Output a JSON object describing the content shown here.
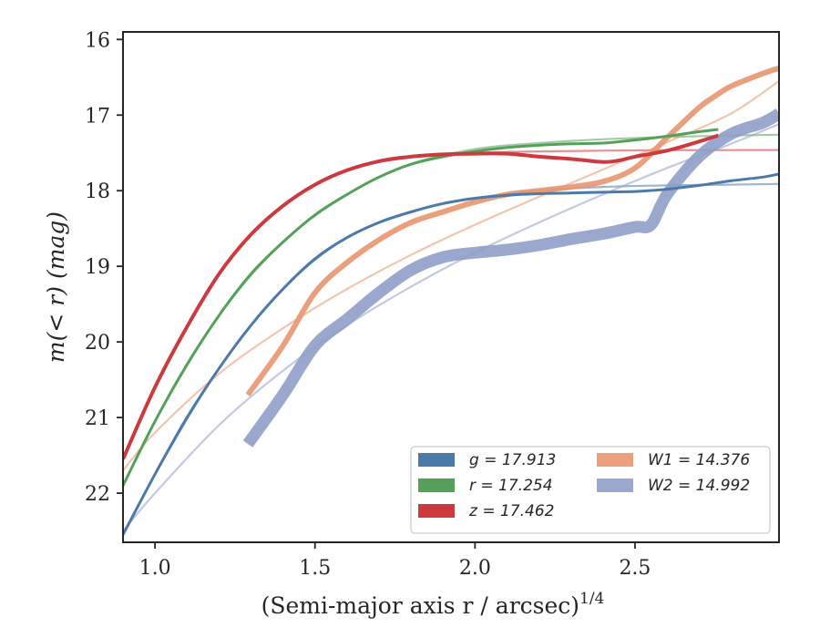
{
  "chart_data": {
    "type": "line",
    "xlabel": "(Semi-major axis r / arcsec)",
    "xlabel_exponent": "1/4",
    "ylabel": "m(< r) (mag)",
    "xlim": [
      0.9,
      2.95
    ],
    "ylim": [
      22.65,
      15.9
    ],
    "y_inverted": true,
    "x_ticks": [
      1.0,
      1.5,
      2.0,
      2.5
    ],
    "x_tick_labels": [
      "1.0",
      "1.5",
      "2.0",
      "2.5"
    ],
    "y_ticks": [
      16,
      17,
      18,
      19,
      20,
      21,
      22
    ],
    "y_tick_labels": [
      "16",
      "17",
      "18",
      "19",
      "20",
      "21",
      "22"
    ],
    "grid": false,
    "legend_position": "lower-right",
    "legend_columns": 2,
    "series": [
      {
        "name": "g = 17.913",
        "band": "g",
        "mag": "17.913",
        "color": "#4c7aa8",
        "x": [
          0.9,
          1.0,
          1.1,
          1.2,
          1.3,
          1.4,
          1.5,
          1.6,
          1.7,
          1.8,
          1.9,
          2.0,
          2.1,
          2.2,
          2.3,
          2.4,
          2.5,
          2.6,
          2.7,
          2.8,
          2.9,
          2.95
        ],
        "y": [
          22.55,
          21.75,
          21.0,
          20.35,
          19.78,
          19.3,
          18.9,
          18.62,
          18.42,
          18.28,
          18.17,
          18.1,
          18.06,
          18.04,
          18.03,
          18.02,
          18.01,
          17.98,
          17.93,
          17.87,
          17.82,
          17.78
        ],
        "model_x": [
          0.9,
          1.0,
          1.2,
          1.4,
          1.6,
          1.8,
          2.0,
          2.2,
          2.4,
          2.6,
          2.8,
          2.95
        ],
        "model_y": [
          22.55,
          21.75,
          20.35,
          19.3,
          18.62,
          18.28,
          18.1,
          18.0,
          17.95,
          17.93,
          17.92,
          17.91
        ]
      },
      {
        "name": "r = 17.254",
        "band": "r",
        "mag": "17.254",
        "color": "#55a05a",
        "x": [
          0.9,
          1.0,
          1.1,
          1.2,
          1.3,
          1.4,
          1.5,
          1.6,
          1.7,
          1.8,
          1.9,
          2.0,
          2.1,
          2.2,
          2.3,
          2.4,
          2.5,
          2.6,
          2.7,
          2.76
        ],
        "y": [
          21.9,
          21.05,
          20.3,
          19.65,
          19.1,
          18.68,
          18.32,
          18.05,
          17.82,
          17.65,
          17.55,
          17.48,
          17.43,
          17.4,
          17.38,
          17.37,
          17.33,
          17.28,
          17.22,
          17.19
        ],
        "model_x": [
          0.9,
          1.0,
          1.2,
          1.4,
          1.6,
          1.8,
          2.0,
          2.2,
          2.4,
          2.6,
          2.8,
          2.95
        ],
        "model_y": [
          21.9,
          21.05,
          19.65,
          18.68,
          18.05,
          17.65,
          17.45,
          17.37,
          17.32,
          17.29,
          17.27,
          17.26
        ]
      },
      {
        "name": "z = 17.462",
        "band": "z",
        "mag": "17.462",
        "color": "#cc3a3f",
        "x": [
          0.9,
          1.0,
          1.1,
          1.2,
          1.3,
          1.4,
          1.5,
          1.6,
          1.7,
          1.8,
          1.9,
          2.0,
          2.1,
          2.2,
          2.3,
          2.4,
          2.45,
          2.5,
          2.6,
          2.7,
          2.76
        ],
        "y": [
          21.55,
          20.6,
          19.8,
          19.1,
          18.58,
          18.2,
          17.92,
          17.73,
          17.61,
          17.55,
          17.52,
          17.51,
          17.51,
          17.55,
          17.58,
          17.62,
          17.6,
          17.55,
          17.47,
          17.35,
          17.27
        ],
        "model_x": [
          0.9,
          1.0,
          1.2,
          1.4,
          1.6,
          1.8,
          2.0,
          2.2,
          2.4,
          2.6,
          2.8,
          2.95
        ],
        "model_y": [
          21.55,
          20.6,
          19.1,
          18.2,
          17.73,
          17.56,
          17.5,
          17.48,
          17.47,
          17.465,
          17.463,
          17.462
        ]
      },
      {
        "name": "W1 = 14.376",
        "band": "W1",
        "mag": "14.376",
        "color": "#e8956f",
        "x": [
          1.29,
          1.4,
          1.5,
          1.6,
          1.7,
          1.8,
          1.9,
          2.0,
          2.1,
          2.2,
          2.3,
          2.4,
          2.5,
          2.6,
          2.7,
          2.75,
          2.8,
          2.9,
          2.95
        ],
        "y": [
          20.7,
          20.05,
          19.35,
          18.95,
          18.65,
          18.42,
          18.28,
          18.15,
          18.05,
          18.0,
          17.95,
          17.88,
          17.7,
          17.3,
          16.9,
          16.75,
          16.62,
          16.45,
          16.38
        ],
        "model_x": [
          0.9,
          1.0,
          1.2,
          1.4,
          1.6,
          1.8,
          2.0,
          2.2,
          2.4,
          2.6,
          2.8,
          2.95
        ],
        "model_y": [
          21.7,
          21.2,
          20.42,
          19.82,
          19.3,
          18.85,
          18.45,
          18.08,
          17.72,
          17.36,
          16.98,
          16.55
        ]
      },
      {
        "name": "W2 = 14.992",
        "band": "W2",
        "mag": "14.992",
        "color": "#8e9ec6",
        "x": [
          1.29,
          1.4,
          1.5,
          1.6,
          1.7,
          1.8,
          1.9,
          2.0,
          2.1,
          2.2,
          2.3,
          2.4,
          2.5,
          2.55,
          2.6,
          2.7,
          2.8,
          2.9,
          2.95
        ],
        "y": [
          21.35,
          20.7,
          20.05,
          19.7,
          19.35,
          19.05,
          18.88,
          18.82,
          18.78,
          18.72,
          18.64,
          18.57,
          18.48,
          18.45,
          18.05,
          17.55,
          17.25,
          17.1,
          16.98
        ],
        "model_x": [
          0.9,
          1.0,
          1.2,
          1.4,
          1.6,
          1.8,
          2.0,
          2.2,
          2.4,
          2.6,
          2.8,
          2.95
        ],
        "model_y": [
          22.5,
          22.0,
          21.1,
          20.38,
          19.78,
          19.27,
          18.82,
          18.42,
          18.05,
          17.7,
          17.38,
          17.12
        ]
      }
    ]
  }
}
